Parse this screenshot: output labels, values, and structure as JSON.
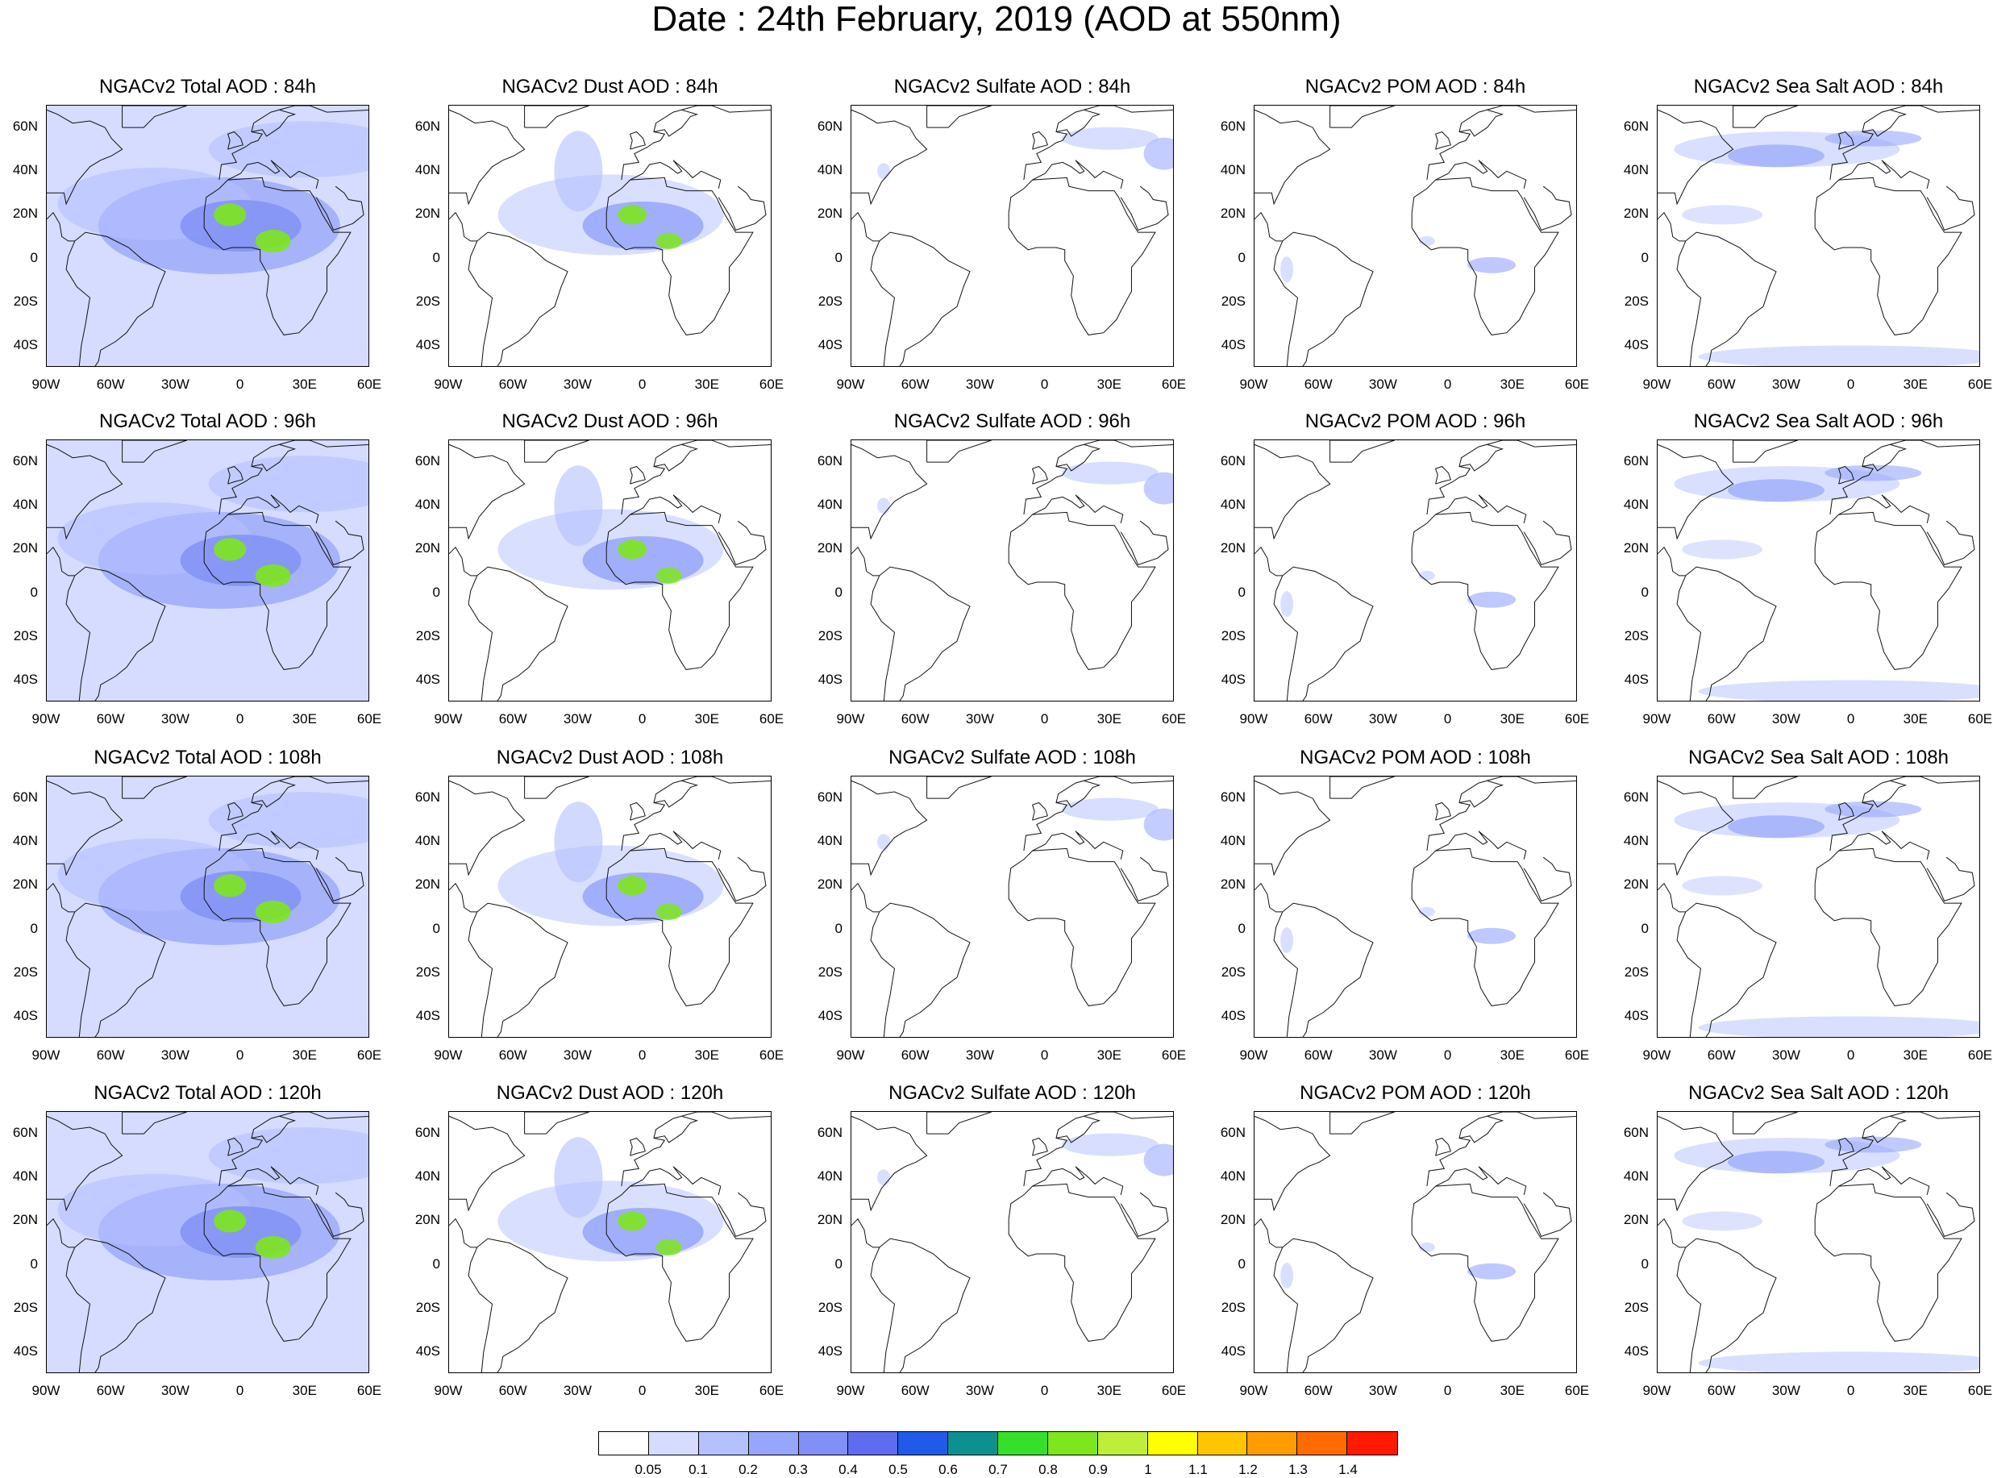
{
  "title": "Date : 24th February, 2019 (AOD at 550nm)",
  "panels": [
    [
      "NGACv2 Total AOD : 84h",
      "NGACv2 Dust AOD : 84h",
      "NGACv2 Sulfate AOD : 84h",
      "NGACv2 POM AOD : 84h",
      "NGACv2 Sea Salt AOD : 84h"
    ],
    [
      "NGACv2 Total AOD : 96h",
      "NGACv2 Dust AOD : 96h",
      "NGACv2 Sulfate AOD : 96h",
      "NGACv2 POM AOD : 96h",
      "NGACv2 Sea Salt AOD : 96h"
    ],
    [
      "NGACv2 Total AOD : 108h",
      "NGACv2 Dust AOD : 108h",
      "NGACv2 Sulfate AOD : 108h",
      "NGACv2 POM AOD : 108h",
      "NGACv2 Sea Salt AOD : 108h"
    ],
    [
      "NGACv2 Total AOD : 120h",
      "NGACv2 Dust AOD : 120h",
      "NGACv2 Sulfate AOD : 120h",
      "NGACv2 POM AOD : 120h",
      "NGACv2 Sea Salt  AOD : 120h"
    ]
  ],
  "lat_ticks": [
    "60N",
    "40N",
    "20N",
    "0",
    "20S",
    "40S"
  ],
  "lat_values": [
    60,
    40,
    20,
    0,
    -20,
    -40
  ],
  "lon_ticks": [
    "90W",
    "60W",
    "30W",
    "0",
    "30E",
    "60E"
  ],
  "lon_values": [
    -90,
    -60,
    -30,
    0,
    30,
    60
  ],
  "map_extent": {
    "lon": [
      -90,
      60
    ],
    "lat": [
      -50,
      70
    ]
  },
  "colorbar": {
    "labels": [
      "0.05",
      "0.1",
      "0.2",
      "0.3",
      "0.4",
      "0.5",
      "0.6",
      "0.7",
      "0.8",
      "0.9",
      "1",
      "1.1",
      "1.2",
      "1.3",
      "1.4"
    ],
    "colors": [
      "#ffffff",
      "#d5dcff",
      "#b4c0ff",
      "#96a6fa",
      "#8090f5",
      "#5f6cee",
      "#1f5be8",
      "#0d9090",
      "#36e02a",
      "#7ee61c",
      "#bfee3a",
      "#ffff00",
      "#ffc600",
      "#ff9d00",
      "#ff6b00",
      "#ff1a00"
    ]
  },
  "species_colors": {
    "total": "#8090f5",
    "dust": "#96a6fa",
    "sulfate": "#b4c0ff",
    "pom": "#b4c0ff",
    "seasalt": "#96a6fa",
    "hotspot": "#7ee61c",
    "light": "#d5dcff"
  }
}
